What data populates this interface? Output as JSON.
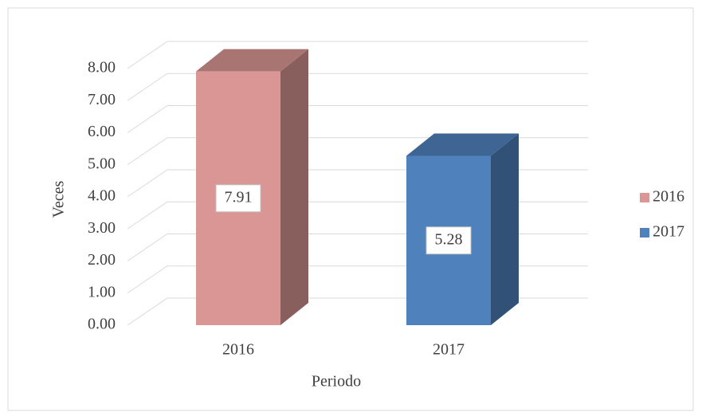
{
  "chart_data": {
    "type": "bar3d",
    "categories": [
      "2016",
      "2017"
    ],
    "values": [
      7.91,
      5.28
    ],
    "colors": [
      "#d99694",
      "#4f81bd"
    ],
    "x_label": "Periodo",
    "y_label": "Veces",
    "ylim": [
      0,
      8
    ],
    "yticks": [
      {
        "value": 0,
        "label": "0.00"
      },
      {
        "value": 1,
        "label": "1.00"
      },
      {
        "value": 2,
        "label": "2.00"
      },
      {
        "value": 3,
        "label": "3.00"
      },
      {
        "value": 4,
        "label": "4.00"
      },
      {
        "value": 5,
        "label": "5.00"
      },
      {
        "value": 6,
        "label": "6.00"
      },
      {
        "value": 7,
        "label": "7.00"
      },
      {
        "value": 8,
        "label": "8.00"
      }
    ],
    "grid": true,
    "legend": "right"
  }
}
